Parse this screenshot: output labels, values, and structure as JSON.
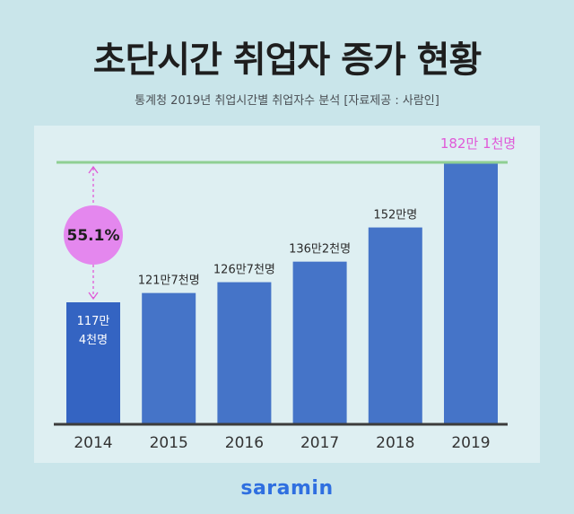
{
  "header": {
    "title": "초단시간 취업자 증가 현황",
    "subtitle": "통계청 2019년 취업시간별 취업자수 분석 [자료제공 : 사람인]"
  },
  "brand": {
    "name": "saramin"
  },
  "colors": {
    "bar": "#4574c8",
    "bar_first": "#3464c2",
    "reference_line": "#8fcf93",
    "accent_pink": "#e05ad8",
    "bubble": "#e487ee"
  },
  "chart_data": {
    "type": "bar",
    "title": "초단시간 취업자 증가 현황",
    "categories": [
      "2014",
      "2015",
      "2016",
      "2017",
      "2018",
      "2019"
    ],
    "values": [
      1174000,
      1217000,
      1267000,
      1362000,
      1520000,
      1821000
    ],
    "data_labels": [
      "117만\n4천명",
      "121만7천명",
      "126만7천명",
      "136만2천명",
      "152만명",
      "182만 1천명"
    ],
    "growth_annotation": "55.1%",
    "xlabel": "",
    "ylabel": "",
    "ylim": [
      0,
      1900000
    ],
    "grid": false,
    "legend": "none"
  }
}
